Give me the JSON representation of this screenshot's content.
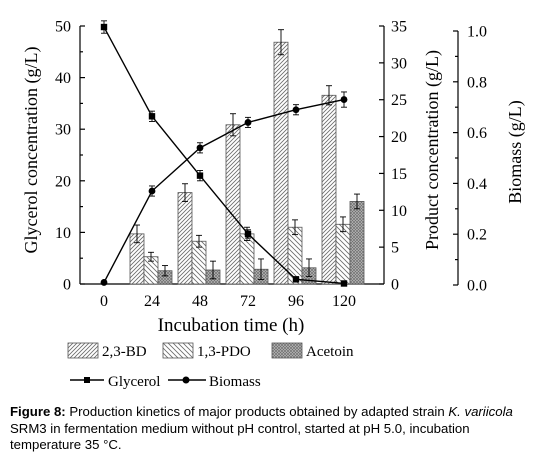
{
  "chart_data": {
    "type": "bar+line",
    "xlabel": "Incubation time (h)",
    "categories": [
      "0",
      "24",
      "48",
      "72",
      "96",
      "120"
    ],
    "y_left": {
      "label": "Glycerol concentration (g/L)",
      "ylim": [
        0,
        50
      ],
      "ticks": [
        "0",
        "10",
        "20",
        "30",
        "40",
        "50"
      ]
    },
    "y_right1": {
      "label": "Product concentration (g/L)",
      "ylim": [
        0,
        35
      ],
      "ticks": [
        "0",
        "5",
        "10",
        "15",
        "20",
        "25",
        "30",
        "35"
      ]
    },
    "y_right2": {
      "label": "Biomass (g/L)",
      "ylim": [
        0,
        1.0
      ],
      "ticks": [
        "0.0",
        "0.2",
        "0.4",
        "0.6",
        "0.8",
        "1.0"
      ]
    },
    "bar_series": [
      {
        "name": "2,3-BD",
        "axis": "product",
        "values": [
          null,
          6.8,
          12.4,
          21.6,
          32.8,
          25.6
        ],
        "errors": [
          null,
          1.2,
          1.2,
          1.5,
          1.7,
          1.3
        ]
      },
      {
        "name": "1,3-PDO",
        "axis": "product",
        "values": [
          null,
          3.7,
          5.8,
          6.8,
          7.7,
          8.1
        ],
        "errors": [
          null,
          0.6,
          0.8,
          0.9,
          1.0,
          1.0
        ]
      },
      {
        "name": "Acetoin",
        "axis": "product",
        "values": [
          null,
          1.8,
          1.9,
          2.0,
          2.2,
          11.2
        ],
        "errors": [
          null,
          0.7,
          1.2,
          1.4,
          1.2,
          1.0
        ]
      }
    ],
    "line_series": [
      {
        "name": "Glycerol",
        "axis": "glycerol",
        "marker": "square",
        "x": [
          0,
          24,
          48,
          72,
          96,
          120
        ],
        "values": [
          49.8,
          32.5,
          21.0,
          9.7,
          0.9,
          0.1
        ],
        "errors": [
          1.2,
          1.0,
          1.0,
          0.8,
          0.5,
          0.3
        ]
      },
      {
        "name": "Biomass",
        "axis": "biomass",
        "marker": "circle",
        "x": [
          0,
          24,
          48,
          72,
          96,
          120
        ],
        "values": [
          0.01,
          0.37,
          0.54,
          0.64,
          0.69,
          0.73
        ],
        "errors": [
          0.0,
          0.02,
          0.02,
          0.02,
          0.02,
          0.03
        ]
      }
    ],
    "legend_placement": "below plot",
    "grid": false,
    "caption": {
      "label": "Figure 8:",
      "text_before": "Production kinetics of major products obtained by adapted strain ",
      "italic": "K. variicola",
      "text_after": " SRM3 in fermentation medium without pH control, started at pH 5.0, incubation temperature 35 °C."
    }
  }
}
